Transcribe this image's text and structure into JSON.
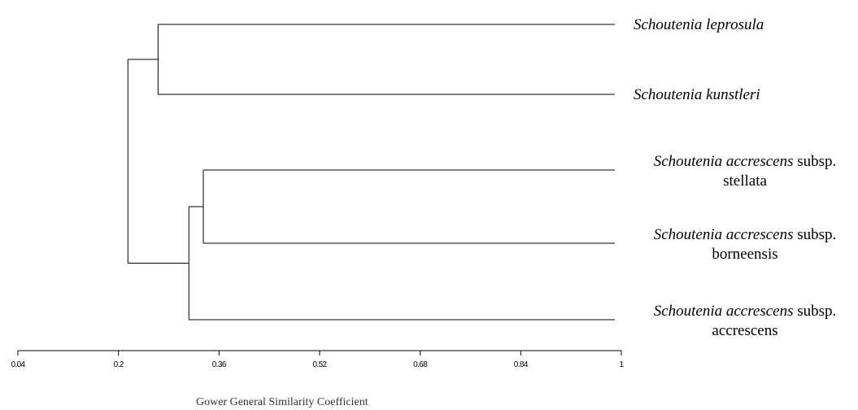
{
  "chart_data": {
    "type": "dendrogram",
    "xlabel": "Gower General Similarity Coefficient",
    "xlim": [
      0.04,
      1
    ],
    "ticks": [
      "0.04",
      "0.2",
      "0.36",
      "0.52",
      "0.68",
      "0.84",
      "1"
    ],
    "tick_values": [
      0.04,
      0.2,
      0.36,
      0.52,
      0.68,
      0.84,
      1
    ],
    "leaves": [
      {
        "genus": "Schoutenia leprosula",
        "rank": "",
        "infra": ""
      },
      {
        "genus": "Schoutenia kunstleri",
        "rank": "",
        "infra": ""
      },
      {
        "genus": "Schoutenia accrescens",
        "rank": "subsp.",
        "infra": "stellata"
      },
      {
        "genus": "Schoutenia accrescens",
        "rank": "subsp.",
        "infra": "borneensis"
      },
      {
        "genus": "Schoutenia accrescens",
        "rank": "subsp.",
        "infra": "accrescens"
      }
    ],
    "merges": [
      {
        "id": "A",
        "children": [
          "leaf:0",
          "leaf:1"
        ],
        "similarity": 0.263
      },
      {
        "id": "C",
        "children": [
          "leaf:2",
          "leaf:3"
        ],
        "similarity": 0.335
      },
      {
        "id": "D",
        "children": [
          "node:C",
          "leaf:4"
        ],
        "similarity": 0.312
      },
      {
        "id": "E",
        "children": [
          "node:A",
          "node:D"
        ],
        "similarity": 0.215
      }
    ]
  }
}
